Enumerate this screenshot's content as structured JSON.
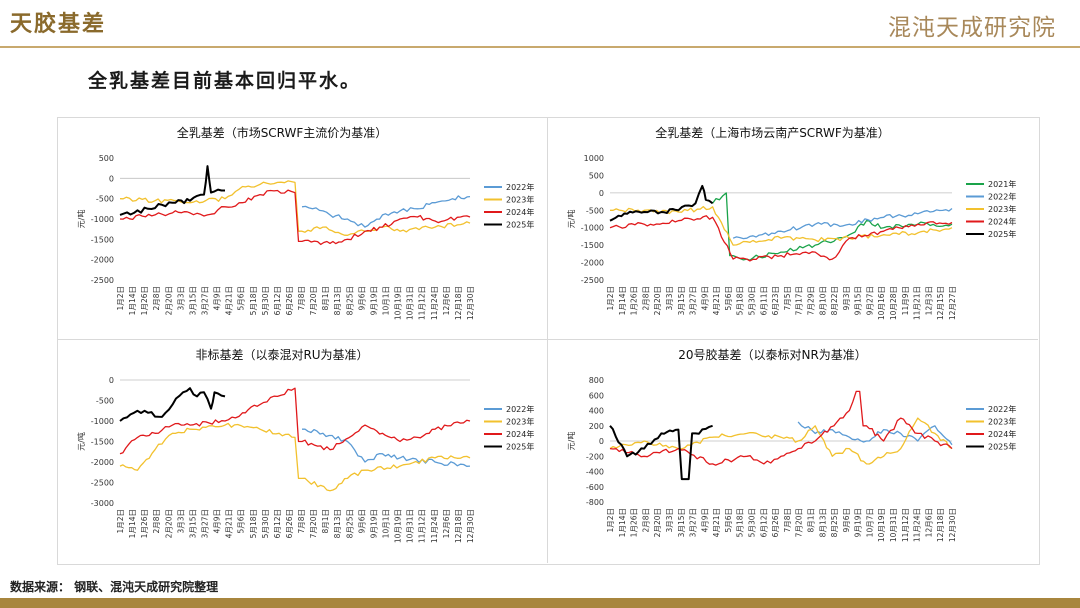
{
  "header": {
    "title": "天胶基差",
    "logo_text": "混沌天成研究院"
  },
  "subtitle": "全乳基差目前基本回归平水。",
  "source": "数据来源：  钢联、混沌天成研究院整理",
  "colors": {
    "2021年": "#1aa34a",
    "2022年": "#5b9bd5",
    "2023年": "#f2c12e",
    "2024年": "#e0191b",
    "2025年": "#000000",
    "accent": "#a8863e"
  },
  "month_ticks_1": [
    "1月2日",
    "1月14日",
    "1月26日",
    "2月8日",
    "2月20日",
    "3月3日",
    "3月15日",
    "3月27日",
    "4月9日",
    "4月21日",
    "5月6日",
    "5月18日",
    "5月30日",
    "6月12日",
    "6月26日",
    "7月8日",
    "7月20日",
    "8月1日",
    "8月13日",
    "8月25日",
    "9月6日",
    "9月19日",
    "10月1日",
    "10月19日",
    "10月31日",
    "11月12日",
    "11月24日",
    "12月6日",
    "12月18日",
    "12月30日"
  ],
  "month_ticks_2": [
    "1月2日",
    "1月14日",
    "1月26日",
    "2月8日",
    "2月20日",
    "3月3日",
    "3月15日",
    "3月27日",
    "4月9日",
    "4月21日",
    "5月6日",
    "5月18日",
    "5月30日",
    "6月11日",
    "6月23日",
    "7月5日",
    "7月17日",
    "7月29日",
    "8月10日",
    "8月22日",
    "9月3日",
    "9月15日",
    "9月27日",
    "10月16日",
    "10月28日",
    "11月9日",
    "11月21日",
    "12月3日",
    "12月15日",
    "12月27日"
  ],
  "month_ticks_4": [
    "1月2日",
    "1月14日",
    "1月26日",
    "2月8日",
    "2月20日",
    "3月3日",
    "3月15日",
    "3月27日",
    "4月9日",
    "4月21日",
    "5月6日",
    "5月18日",
    "5月30日",
    "6月12日",
    "6月26日",
    "7月8日",
    "7月20日",
    "8月1日",
    "8月13日",
    "8月25日",
    "9月6日",
    "9月19日",
    "10月7日",
    "10月19日",
    "10月31日",
    "11月12日",
    "11月24日",
    "12月6日",
    "12月18日",
    "12月30日"
  ],
  "chart_data": [
    {
      "type": "line",
      "title": "全乳基差（市场SCRWF主流价为基准）",
      "ylabel": "元/吨",
      "ylim": [
        -2500,
        500
      ],
      "yticks": [
        "500",
        "0",
        "-500",
        "-1000",
        "-1500",
        "-2000",
        "-2500"
      ],
      "legend_position": "right",
      "series": [
        {
          "name": "2022年",
          "x": [
            0.52,
            0.55,
            0.6,
            0.65,
            0.7,
            0.75,
            0.8,
            0.85,
            0.9,
            0.95,
            1.0
          ],
          "values": [
            -700,
            -750,
            -900,
            -1000,
            -1200,
            -900,
            -800,
            -750,
            -600,
            -500,
            -450
          ]
        },
        {
          "name": "2023年",
          "x": [
            0,
            0.1,
            0.2,
            0.3,
            0.35,
            0.4,
            0.45,
            0.5,
            0.52,
            0.58,
            0.65,
            0.7,
            0.75,
            0.8,
            0.9,
            1.0
          ],
          "values": [
            -500,
            -550,
            -600,
            -500,
            -200,
            -150,
            -100,
            -100,
            -1300,
            -1200,
            -1400,
            -1300,
            -1200,
            -1300,
            -1200,
            -1100
          ]
        },
        {
          "name": "2024年",
          "x": [
            0,
            0.1,
            0.15,
            0.2,
            0.25,
            0.3,
            0.35,
            0.4,
            0.45,
            0.5,
            0.52,
            0.6,
            0.65,
            0.7,
            0.75,
            0.8,
            0.85,
            0.9,
            1.0
          ],
          "values": [
            -1000,
            -900,
            -850,
            -850,
            -900,
            -700,
            -600,
            -400,
            -300,
            -350,
            -1550,
            -1600,
            -1500,
            -1300,
            -1200,
            -1000,
            -950,
            -1050,
            -950
          ]
        },
        {
          "name": "2025年",
          "x": [
            0,
            0.04,
            0.08,
            0.12,
            0.15,
            0.2,
            0.24,
            0.25,
            0.26,
            0.3
          ],
          "values": [
            -900,
            -850,
            -750,
            -650,
            -600,
            -550,
            -400,
            300,
            -350,
            -300
          ]
        }
      ]
    },
    {
      "type": "line",
      "title": "全乳基差（上海市场云南产SCRWF为基准）",
      "ylabel": "元/吨",
      "ylim": [
        -2500,
        1000
      ],
      "yticks": [
        "1000",
        "500",
        "0",
        "-500",
        "-1000",
        "-1500",
        "-2000",
        "-2500"
      ],
      "legend_position": "right",
      "series": [
        {
          "name": "2021年",
          "x": [
            0.3,
            0.34,
            0.36,
            0.4,
            0.5,
            0.6,
            0.7,
            0.75,
            0.8,
            0.9,
            1.0
          ],
          "values": [
            -300,
            0,
            -1800,
            -1900,
            -1700,
            -1500,
            -1200,
            -800,
            -1000,
            -900,
            -900
          ]
        },
        {
          "name": "2022年",
          "x": [
            0.36,
            0.4,
            0.5,
            0.6,
            0.7,
            0.8,
            0.9,
            1.0
          ],
          "values": [
            -1300,
            -1300,
            -1100,
            -900,
            -900,
            -700,
            -600,
            -450
          ]
        },
        {
          "name": "2023年",
          "x": [
            0,
            0.1,
            0.2,
            0.3,
            0.36,
            0.4,
            0.5,
            0.6,
            0.7,
            0.8,
            0.9,
            1.0
          ],
          "values": [
            -500,
            -500,
            -550,
            -400,
            -1500,
            -1400,
            -1300,
            -1350,
            -1300,
            -1200,
            -1150,
            -1000
          ]
        },
        {
          "name": "2024年",
          "x": [
            0,
            0.1,
            0.2,
            0.3,
            0.36,
            0.4,
            0.5,
            0.6,
            0.65,
            0.7,
            0.8,
            0.9,
            1.0
          ],
          "values": [
            -1000,
            -900,
            -800,
            -700,
            -1900,
            -1900,
            -1800,
            -1700,
            -1900,
            -1300,
            -1100,
            -900,
            -850
          ]
        },
        {
          "name": "2025年",
          "x": [
            0,
            0.05,
            0.1,
            0.15,
            0.2,
            0.25,
            0.27,
            0.28,
            0.3
          ],
          "values": [
            -800,
            -600,
            -550,
            -550,
            -500,
            -300,
            200,
            -200,
            -300
          ]
        }
      ]
    },
    {
      "type": "line",
      "title": "非标基差（以泰混对RU为基准）",
      "ylabel": "元/吨",
      "ylim": [
        -3000,
        0
      ],
      "yticks": [
        "0",
        "-500",
        "-1000",
        "-1500",
        "-2000",
        "-2500",
        "-3000"
      ],
      "legend_position": "right",
      "series": [
        {
          "name": "2022年",
          "x": [
            0.52,
            0.58,
            0.65,
            0.7,
            0.75,
            0.8,
            0.9,
            1.0
          ],
          "values": [
            -1200,
            -1300,
            -1500,
            -2000,
            -1800,
            -1900,
            -2000,
            -2100
          ]
        },
        {
          "name": "2023年",
          "x": [
            0,
            0.05,
            0.1,
            0.15,
            0.2,
            0.3,
            0.4,
            0.5,
            0.52,
            0.6,
            0.65,
            0.7,
            0.8,
            0.9,
            1.0
          ],
          "values": [
            -2100,
            -2200,
            -1700,
            -1300,
            -1200,
            -1100,
            -1200,
            -1400,
            -2400,
            -2700,
            -2400,
            -2200,
            -2100,
            -1900,
            -1900
          ]
        },
        {
          "name": "2024年",
          "x": [
            0,
            0.05,
            0.1,
            0.15,
            0.2,
            0.3,
            0.35,
            0.4,
            0.45,
            0.5,
            0.52,
            0.6,
            0.7,
            0.75,
            0.8,
            0.85,
            0.9,
            1.0
          ],
          "values": [
            -1800,
            -1400,
            -1300,
            -1100,
            -1100,
            -1000,
            -800,
            -600,
            -400,
            -200,
            -1500,
            -1700,
            -1100,
            -1300,
            -1500,
            -1400,
            -1200,
            -1000
          ]
        },
        {
          "name": "2025年",
          "x": [
            0,
            0.04,
            0.08,
            0.12,
            0.15,
            0.18,
            0.2,
            0.22,
            0.24,
            0.26,
            0.27,
            0.3
          ],
          "values": [
            -1000,
            -800,
            -800,
            -900,
            -600,
            -300,
            -200,
            -400,
            -300,
            -700,
            -300,
            -400
          ]
        }
      ]
    },
    {
      "type": "line",
      "title": "20号胶基差（以泰标对NR为基准）",
      "ylabel": "元/吨",
      "ylim": [
        -800,
        800
      ],
      "yticks": [
        "800",
        "600",
        "400",
        "200",
        "0",
        "-200",
        "-400",
        "-600",
        "-800"
      ],
      "legend_position": "right",
      "series": [
        {
          "name": "2022年",
          "x": [
            0.55,
            0.6,
            0.65,
            0.7,
            0.75,
            0.8,
            0.85,
            0.9,
            0.95,
            1.0
          ],
          "values": [
            250,
            100,
            150,
            50,
            0,
            150,
            100,
            0,
            200,
            -50
          ]
        },
        {
          "name": "2023年",
          "x": [
            0,
            0.1,
            0.2,
            0.3,
            0.4,
            0.5,
            0.55,
            0.6,
            0.65,
            0.7,
            0.75,
            0.8,
            0.85,
            0.9,
            0.95,
            1.0
          ],
          "values": [
            -100,
            0,
            -100,
            50,
            100,
            50,
            0,
            200,
            -200,
            -100,
            -300,
            -200,
            -100,
            300,
            100,
            -100
          ]
        },
        {
          "name": "2024年",
          "x": [
            0,
            0.1,
            0.2,
            0.3,
            0.4,
            0.45,
            0.5,
            0.55,
            0.6,
            0.7,
            0.72,
            0.75,
            0.8,
            0.85,
            0.9,
            0.95,
            1.0
          ],
          "values": [
            -100,
            -200,
            -100,
            -300,
            -200,
            -300,
            -200,
            -100,
            0,
            400,
            650,
            200,
            0,
            300,
            100,
            0,
            -100
          ]
        },
        {
          "name": "2025年",
          "x": [
            0,
            0.05,
            0.1,
            0.15,
            0.2,
            0.22,
            0.25,
            0.3
          ],
          "values": [
            200,
            -200,
            -100,
            100,
            150,
            -500,
            100,
            200
          ]
        }
      ]
    }
  ]
}
